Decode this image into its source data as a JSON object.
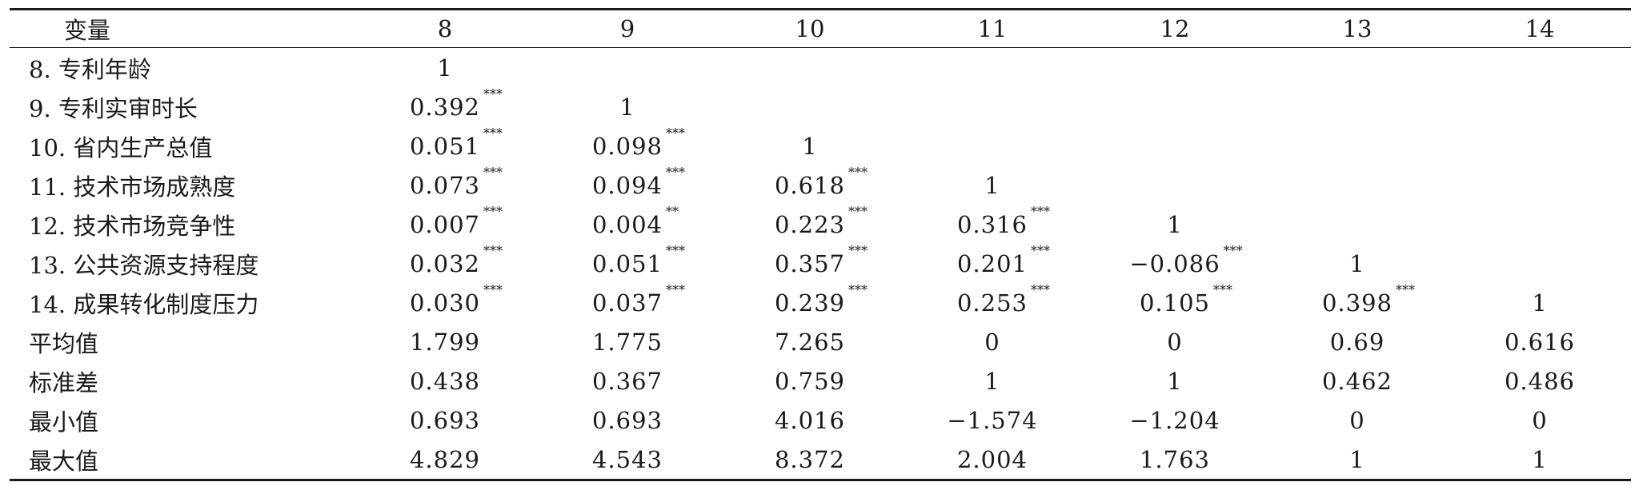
{
  "table": {
    "columns": [
      "变量",
      "8",
      "9",
      "10",
      "11",
      "12",
      "13",
      "14"
    ],
    "rows": [
      {
        "label": "8. 专利年龄",
        "cells": [
          {
            "v": "1",
            "s": ""
          },
          {
            "v": "",
            "s": ""
          },
          {
            "v": "",
            "s": ""
          },
          {
            "v": "",
            "s": ""
          },
          {
            "v": "",
            "s": ""
          },
          {
            "v": "",
            "s": ""
          },
          {
            "v": "",
            "s": ""
          }
        ]
      },
      {
        "label": "9. 专利实审时长",
        "cells": [
          {
            "v": "0.392",
            "s": "***"
          },
          {
            "v": "1",
            "s": ""
          },
          {
            "v": "",
            "s": ""
          },
          {
            "v": "",
            "s": ""
          },
          {
            "v": "",
            "s": ""
          },
          {
            "v": "",
            "s": ""
          },
          {
            "v": "",
            "s": ""
          }
        ]
      },
      {
        "label": "10. 省内生产总值",
        "cells": [
          {
            "v": "0.051",
            "s": "***"
          },
          {
            "v": "0.098",
            "s": "***"
          },
          {
            "v": "1",
            "s": ""
          },
          {
            "v": "",
            "s": ""
          },
          {
            "v": "",
            "s": ""
          },
          {
            "v": "",
            "s": ""
          },
          {
            "v": "",
            "s": ""
          }
        ]
      },
      {
        "label": "11. 技术市场成熟度",
        "cells": [
          {
            "v": "0.073",
            "s": "***"
          },
          {
            "v": "0.094",
            "s": "***"
          },
          {
            "v": "0.618",
            "s": "***"
          },
          {
            "v": "1",
            "s": ""
          },
          {
            "v": "",
            "s": ""
          },
          {
            "v": "",
            "s": ""
          },
          {
            "v": "",
            "s": ""
          }
        ]
      },
      {
        "label": "12. 技术市场竞争性",
        "cells": [
          {
            "v": "0.007",
            "s": "***"
          },
          {
            "v": "0.004",
            "s": "**"
          },
          {
            "v": "0.223",
            "s": "***"
          },
          {
            "v": "0.316",
            "s": "***"
          },
          {
            "v": "1",
            "s": ""
          },
          {
            "v": "",
            "s": ""
          },
          {
            "v": "",
            "s": ""
          }
        ]
      },
      {
        "label": "13. 公共资源支持程度",
        "cells": [
          {
            "v": "0.032",
            "s": "***"
          },
          {
            "v": "0.051",
            "s": "***"
          },
          {
            "v": "0.357",
            "s": "***"
          },
          {
            "v": "0.201",
            "s": "***"
          },
          {
            "v": "−0.086",
            "s": "***"
          },
          {
            "v": "1",
            "s": ""
          },
          {
            "v": "",
            "s": ""
          }
        ]
      },
      {
        "label": "14. 成果转化制度压力",
        "cells": [
          {
            "v": "0.030",
            "s": "***"
          },
          {
            "v": "0.037",
            "s": "***"
          },
          {
            "v": "0.239",
            "s": "***"
          },
          {
            "v": "0.253",
            "s": "***"
          },
          {
            "v": "0.105",
            "s": "***"
          },
          {
            "v": "0.398",
            "s": "***"
          },
          {
            "v": "1",
            "s": ""
          }
        ]
      },
      {
        "label": "平均值",
        "cells": [
          {
            "v": "1.799",
            "s": ""
          },
          {
            "v": "1.775",
            "s": ""
          },
          {
            "v": "7.265",
            "s": ""
          },
          {
            "v": "0",
            "s": ""
          },
          {
            "v": "0",
            "s": ""
          },
          {
            "v": "0.69",
            "s": ""
          },
          {
            "v": "0.616",
            "s": ""
          }
        ]
      },
      {
        "label": "标准差",
        "cells": [
          {
            "v": "0.438",
            "s": ""
          },
          {
            "v": "0.367",
            "s": ""
          },
          {
            "v": "0.759",
            "s": ""
          },
          {
            "v": "1",
            "s": ""
          },
          {
            "v": "1",
            "s": ""
          },
          {
            "v": "0.462",
            "s": ""
          },
          {
            "v": "0.486",
            "s": ""
          }
        ]
      },
      {
        "label": "最小值",
        "cells": [
          {
            "v": "0.693",
            "s": ""
          },
          {
            "v": "0.693",
            "s": ""
          },
          {
            "v": "4.016",
            "s": ""
          },
          {
            "v": "−1.574",
            "s": ""
          },
          {
            "v": "−1.204",
            "s": ""
          },
          {
            "v": "0",
            "s": ""
          },
          {
            "v": "0",
            "s": ""
          }
        ]
      },
      {
        "label": "最大值",
        "cells": [
          {
            "v": "4.829",
            "s": ""
          },
          {
            "v": "4.543",
            "s": ""
          },
          {
            "v": "8.372",
            "s": ""
          },
          {
            "v": "2.004",
            "s": ""
          },
          {
            "v": "1.763",
            "s": ""
          },
          {
            "v": "1",
            "s": ""
          },
          {
            "v": "1",
            "s": ""
          }
        ]
      }
    ]
  }
}
